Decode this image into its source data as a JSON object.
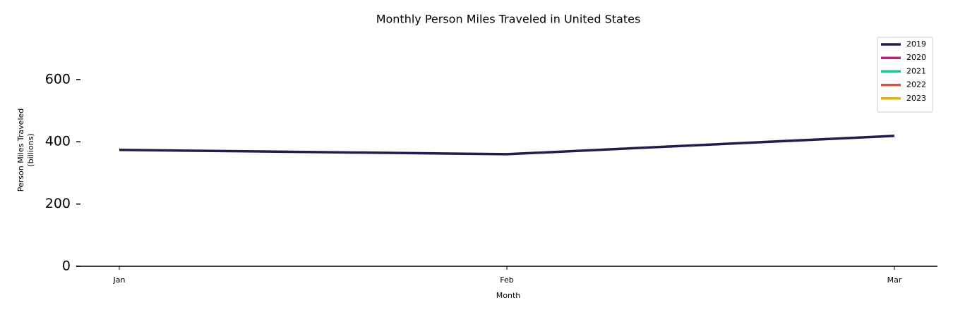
{
  "chart_data": {
    "type": "line",
    "title": "Monthly Person Miles Traveled in United States",
    "xlabel": "Month",
    "ylabel": [
      "Person Miles Traveled",
      "(billions)"
    ],
    "categories": [
      "Jan",
      "Feb",
      "Mar"
    ],
    "series": [
      {
        "name": "2019",
        "color": "#1f1f4f",
        "values": [
          374,
          360,
          419
        ]
      },
      {
        "name": "2020",
        "color": "#c81e7c",
        "values": [
          null,
          null,
          null
        ]
      },
      {
        "name": "2021",
        "color": "#22bd8a",
        "values": [
          null,
          null,
          null
        ]
      },
      {
        "name": "2022",
        "color": "#dd5040",
        "values": [
          null,
          null,
          null
        ]
      },
      {
        "name": "2023",
        "color": "#dcb21a",
        "values": [
          null,
          null,
          null
        ]
      }
    ],
    "ylim": [
      0,
      740
    ],
    "yticks": [
      0,
      200,
      400,
      600
    ],
    "grid": false,
    "legend": "upper right"
  }
}
